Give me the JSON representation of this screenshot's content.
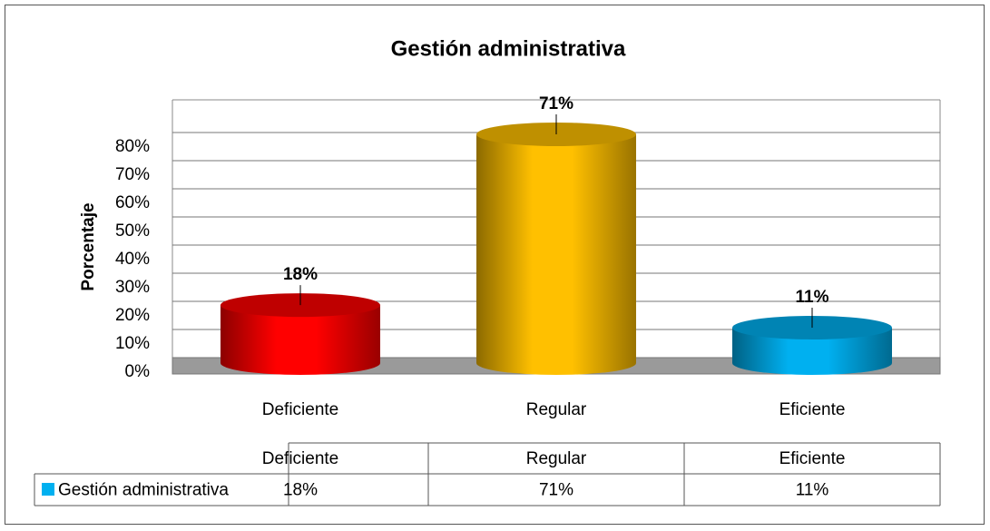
{
  "chart_data": {
    "type": "cylinder-bar",
    "title": "Gestión administrativa",
    "y_label": "Porcentaje",
    "categories": [
      "Deficiente",
      "Regular",
      "Eficiente"
    ],
    "series": [
      {
        "name": "Gestión administrativa",
        "color": "#00b0f0",
        "colors": [
          "#ff0000",
          "#ffc000",
          "#00b0f0"
        ],
        "values": [
          18,
          71,
          11
        ],
        "value_labels": [
          "18%",
          "71%",
          "11%"
        ]
      }
    ],
    "ylim": [
      0,
      80
    ],
    "yticks": [
      {
        "value": 0,
        "label": "0%"
      },
      {
        "value": 10,
        "label": "10%"
      },
      {
        "value": 20,
        "label": "20%"
      },
      {
        "value": 30,
        "label": "30%"
      },
      {
        "value": 40,
        "label": "40%"
      },
      {
        "value": 50,
        "label": "50%"
      },
      {
        "value": 60,
        "label": "60%"
      },
      {
        "value": 70,
        "label": "70%"
      },
      {
        "value": 80,
        "label": "80%"
      }
    ],
    "grid": true,
    "data_table": true
  }
}
